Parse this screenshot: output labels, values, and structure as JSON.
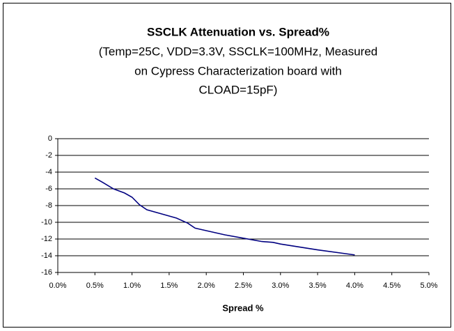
{
  "chart_data": {
    "type": "line",
    "title": "SSCLK Attenuation vs. Spread%",
    "subtitle": [
      "(Temp=25C, VDD=3.3V, SSCLK=100MHz, Measured",
      "on Cypress Characterization board with",
      "CLOAD=15pF)"
    ],
    "x_label": "Spread %",
    "x": [
      0.5,
      0.6,
      0.75,
      0.9,
      1.0,
      1.1,
      1.2,
      1.4,
      1.6,
      1.75,
      1.85,
      2.0,
      2.25,
      2.5,
      2.75,
      2.9,
      3.0,
      3.5,
      4.0
    ],
    "series": [
      {
        "name": "SSCLK Attenuation",
        "color": "#000080",
        "values": [
          -4.7,
          -5.2,
          -6.0,
          -6.5,
          -7.0,
          -7.9,
          -8.5,
          -9.0,
          -9.5,
          -10.1,
          -10.7,
          -11.0,
          -11.5,
          -11.9,
          -12.3,
          -12.4,
          -12.6,
          -13.3,
          -13.9
        ]
      }
    ],
    "xlim": [
      0,
      5
    ],
    "xticks": [
      {
        "value": 0,
        "label": "0.0%"
      },
      {
        "value": 0.5,
        "label": "0.5%"
      },
      {
        "value": 1,
        "label": "1.0%"
      },
      {
        "value": 1.5,
        "label": "1.5%"
      },
      {
        "value": 2,
        "label": "2.0%"
      },
      {
        "value": 2.5,
        "label": "2.5%"
      },
      {
        "value": 3,
        "label": "3.0%"
      },
      {
        "value": 3.5,
        "label": "3.5%"
      },
      {
        "value": 4,
        "label": "4.0%"
      },
      {
        "value": 4.5,
        "label": "4.5%"
      },
      {
        "value": 5,
        "label": "5.0%"
      }
    ],
    "ylim": [
      -16,
      0
    ],
    "yticks": [
      0,
      -2,
      -4,
      -6,
      -8,
      -10,
      -12,
      -14,
      -16
    ],
    "grid": true
  }
}
